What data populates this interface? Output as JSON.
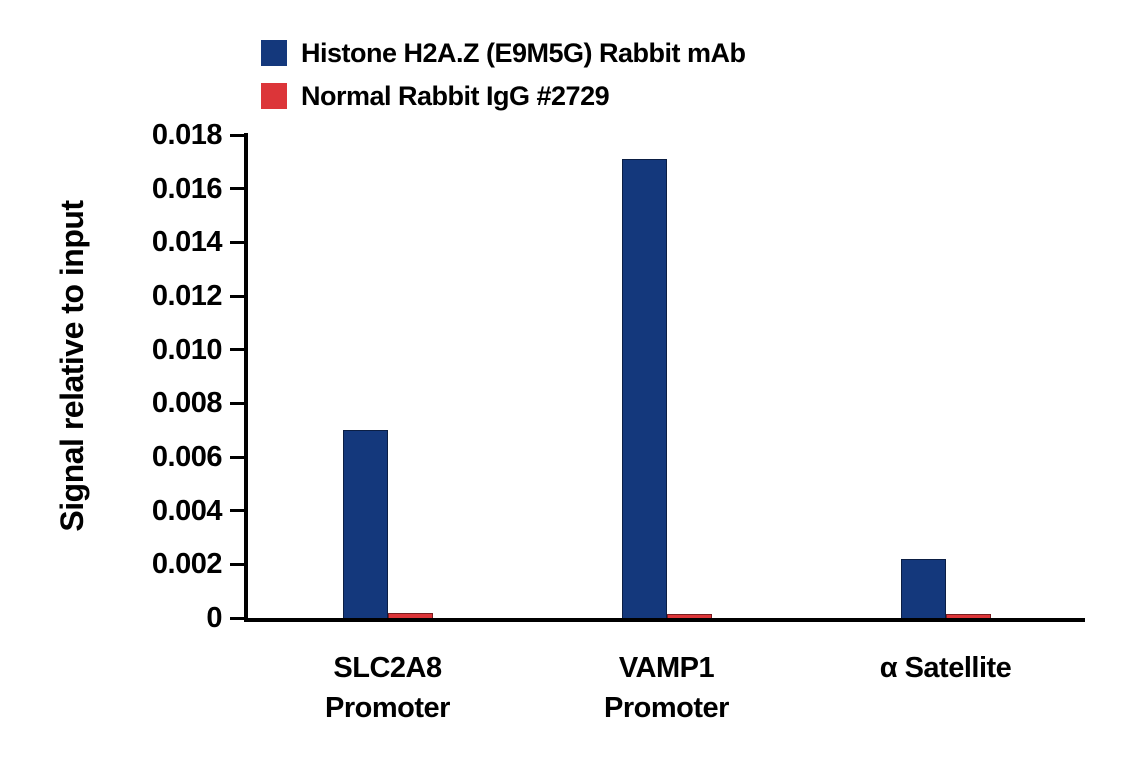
{
  "legend": {
    "items": [
      {
        "label": "Histone H2A.Z (E9M5G) Rabbit mAb",
        "color": "#14387C"
      },
      {
        "label": "Normal Rabbit IgG #2729",
        "color": "#DC3539"
      }
    ]
  },
  "chart_data": {
    "type": "bar",
    "title": "",
    "xlabel": "",
    "ylabel": "Signal relative to input",
    "categories": [
      "SLC2A8\nPromoter",
      "VAMP1\nPromoter",
      "α Satellite"
    ],
    "series": [
      {
        "name": "Histone H2A.Z (E9M5G) Rabbit mAb",
        "color": "#14387C",
        "values": [
          0.007,
          0.0171,
          0.0022
        ]
      },
      {
        "name": "Normal Rabbit IgG #2729",
        "color": "#DC3539",
        "values": [
          0.0002,
          0.00015,
          0.00015
        ]
      }
    ],
    "ylim": [
      0,
      0.018
    ],
    "ytick_step": 0.002,
    "ytick_labels": [
      "0.018",
      "0.016",
      "0.014",
      "0.012",
      "0.010",
      "0.008",
      "0.006",
      "0.004",
      "0.002",
      "0"
    ],
    "grid": false,
    "legend_position": "top-left"
  }
}
